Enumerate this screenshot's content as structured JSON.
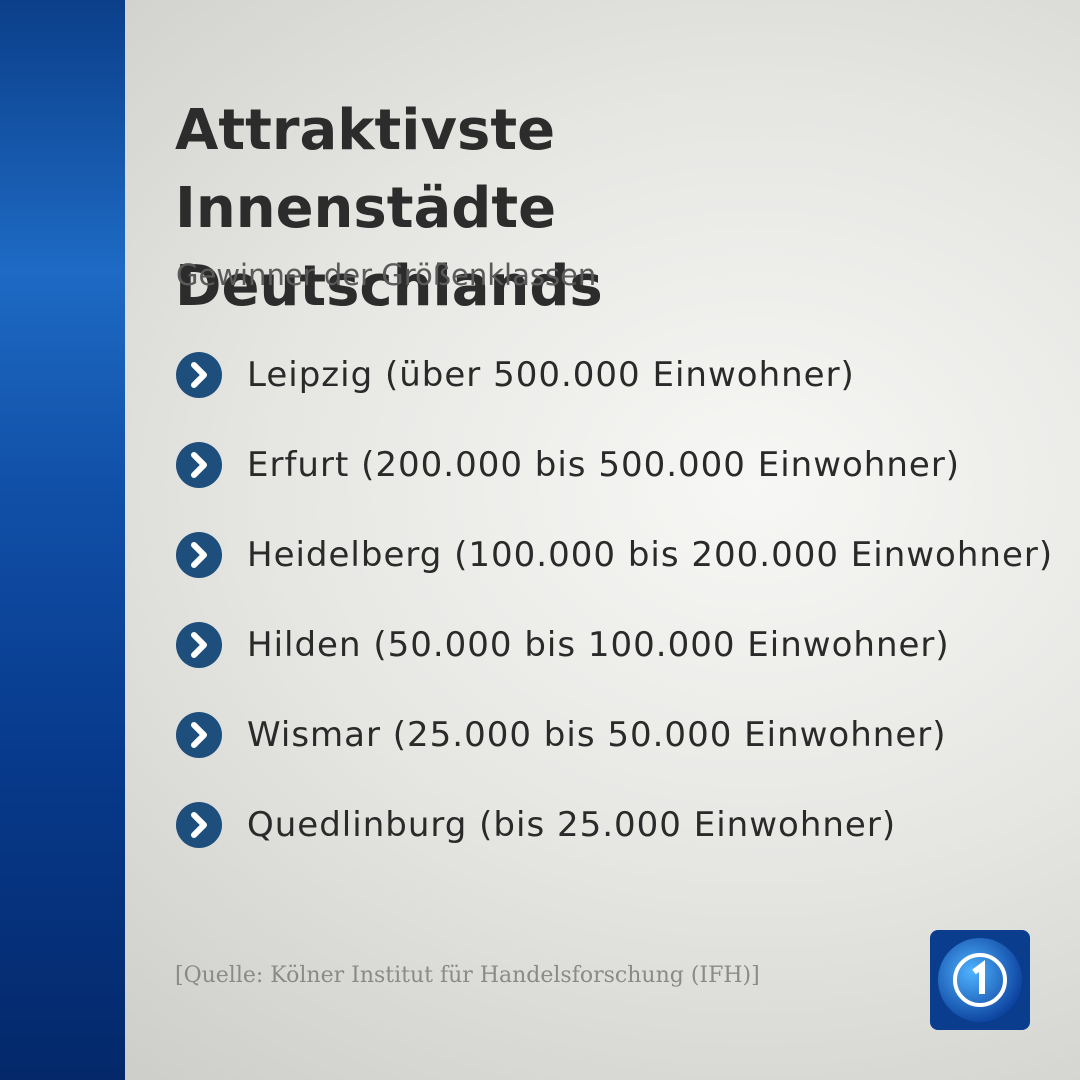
{
  "header": {
    "title": "Attraktivste Innenstädte Deutschlands",
    "subtitle": "Gewinner der Größenklassen"
  },
  "items": [
    "Leipzig (über 500.000 Einwohner)",
    "Erfurt (200.000 bis 500.000 Einwohner)",
    "Heidelberg (100.000 bis 200.000 Einwohner)",
    "Hilden (50.000 bis 100.000 Einwohner)",
    "Wismar (25.000 bis 50.000 Einwohner)",
    "Quedlinburg (bis 25.000 Einwohner)"
  ],
  "source": "[Quelle: Kölner Institut für Handelsforschung (IFH)]"
}
